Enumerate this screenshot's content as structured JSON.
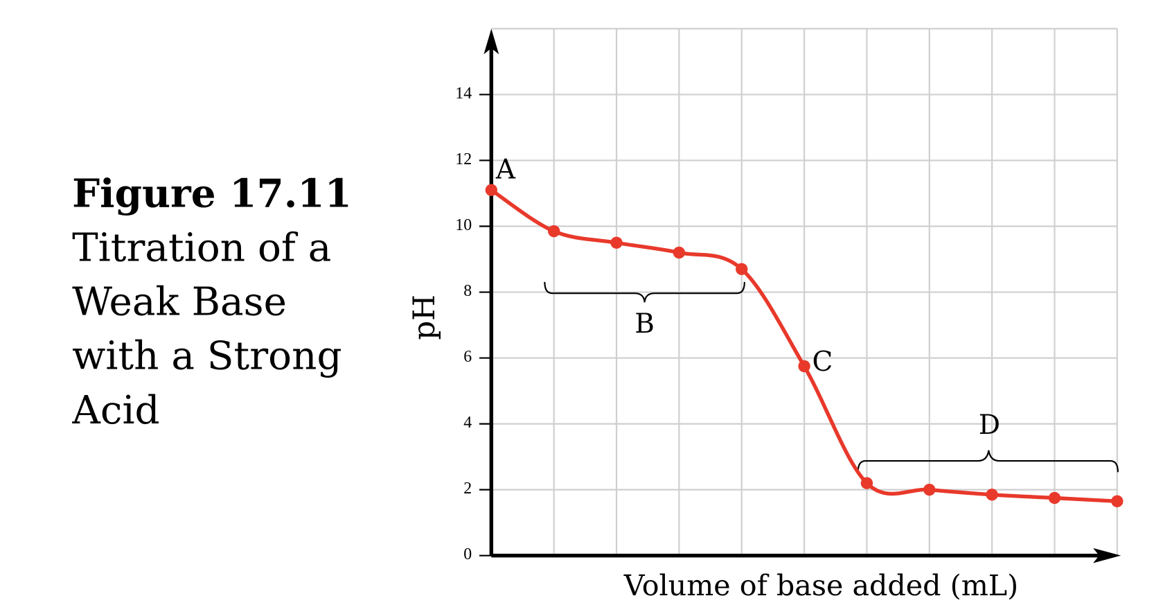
{
  "chart_data": {
    "type": "line",
    "title": "Figure 17.11",
    "subtitle": "Titration of a Weak Base with a Strong Acid",
    "xlabel": "Volume of base added (mL)",
    "ylabel": "pH",
    "xlim": [
      0,
      10
    ],
    "ylim": [
      0,
      16
    ],
    "yticks": [
      0,
      2,
      4,
      6,
      8,
      10,
      12,
      14
    ],
    "grid": true,
    "series": [
      {
        "color": "#e8392b",
        "x": [
          0,
          1,
          2,
          3,
          4,
          5,
          6,
          7,
          8,
          9,
          10
        ],
        "values": [
          11.1,
          9.85,
          9.5,
          9.2,
          8.7,
          5.75,
          2.2,
          2.0,
          1.85,
          1.75,
          1.65
        ]
      }
    ],
    "annotations": [
      "A",
      "B",
      "C",
      "D"
    ]
  }
}
